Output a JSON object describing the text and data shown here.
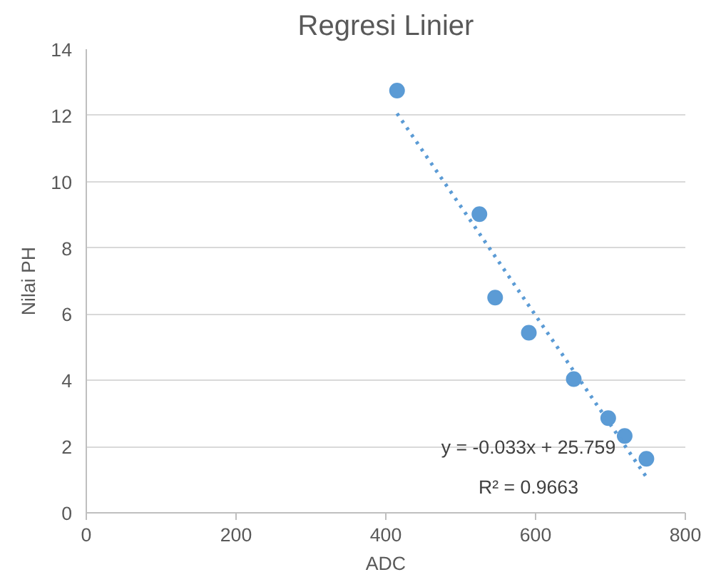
{
  "chart_data": {
    "type": "scatter",
    "title": "Regresi Linier",
    "xlabel": "ADC",
    "ylabel": "Nilai PH",
    "xlim": [
      0,
      800
    ],
    "xticks": [
      0,
      200,
      400,
      600,
      800
    ],
    "ylim": [
      0,
      14
    ],
    "yticks": [
      0,
      2,
      4,
      6,
      8,
      10,
      12,
      14
    ],
    "grid": "y",
    "marker": "circle",
    "series": [
      {
        "color": "#5b9bd5",
        "x": [
          415,
          525,
          546,
          591,
          651,
          697,
          719,
          748
        ],
        "values": [
          12.75,
          9.02,
          6.5,
          5.44,
          4.04,
          2.86,
          2.32,
          1.63
        ]
      },
      {
        "type": "line",
        "line_style": "dotted",
        "marker": "none",
        "color": "#5b9bd5",
        "x": [
          415,
          748
        ],
        "values": [
          12.06,
          1.08
        ]
      }
    ],
    "annotations": [
      "y = -0.033x + 25.759",
      "R² = 0.9663"
    ]
  }
}
